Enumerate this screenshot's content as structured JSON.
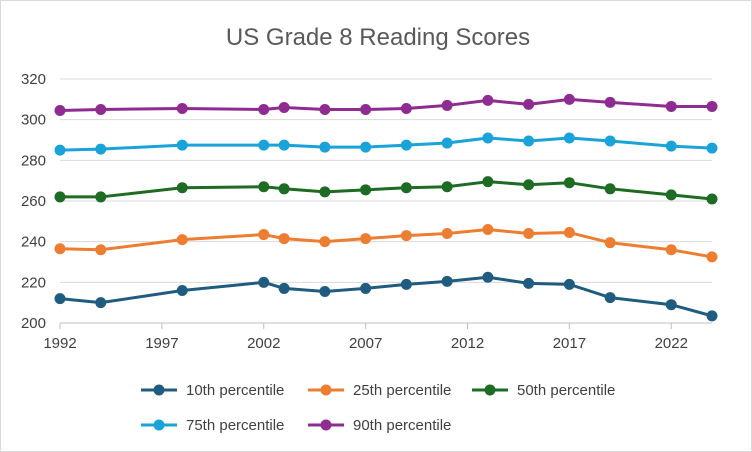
{
  "chart_data": {
    "type": "line",
    "title": "US Grade 8  Reading Scores",
    "xlabel": "",
    "ylabel": "",
    "xlim": [
      1992,
      2024
    ],
    "ylim": [
      200,
      320
    ],
    "x_ticks": [
      1992,
      1997,
      2002,
      2007,
      2012,
      2017,
      2022
    ],
    "y_ticks": [
      200,
      220,
      240,
      260,
      280,
      300,
      320
    ],
    "grid": "horizontal",
    "legend_position": "bottom",
    "x": [
      1992,
      1994,
      1998,
      2002,
      2003,
      2005,
      2007,
      2009,
      2011,
      2013,
      2015,
      2017,
      2019,
      2022,
      2024
    ],
    "series": [
      {
        "name": "10th percentile",
        "color": "#1f5c80",
        "values": [
          212,
          210,
          216,
          220,
          217,
          215.5,
          217,
          219,
          220.5,
          222.5,
          219.5,
          219,
          212.5,
          209,
          203.5
        ]
      },
      {
        "name": "25th percentile",
        "color": "#ed7d31",
        "values": [
          236.5,
          236,
          241,
          243.5,
          241.5,
          240,
          241.5,
          243,
          244,
          246,
          244,
          244.5,
          239.5,
          236,
          232.5
        ]
      },
      {
        "name": "50th percentile",
        "color": "#1e6b24",
        "values": [
          262,
          262,
          266.5,
          267,
          266,
          264.5,
          265.5,
          266.5,
          267,
          269.5,
          268,
          269,
          266,
          263,
          261
        ]
      },
      {
        "name": "75th percentile",
        "color": "#1aa3d9",
        "values": [
          285,
          285.5,
          287.5,
          287.5,
          287.5,
          286.5,
          286.5,
          287.5,
          288.5,
          291,
          289.5,
          291,
          289.5,
          287,
          286
        ]
      },
      {
        "name": "90th percentile",
        "color": "#8e2c91",
        "values": [
          304.5,
          305,
          305.5,
          305,
          306,
          305,
          305,
          305.5,
          307,
          309.5,
          307.5,
          310,
          308.5,
          306.5,
          306.5
        ]
      }
    ]
  }
}
